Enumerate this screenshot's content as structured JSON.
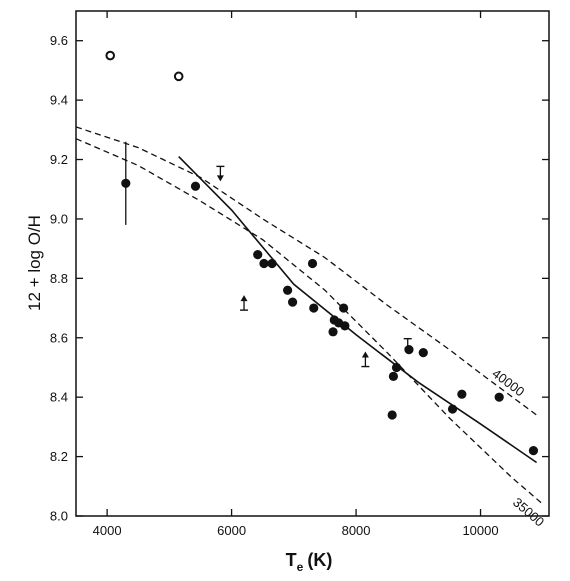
{
  "chart_data": {
    "type": "scatter",
    "title": "",
    "xlabel": "T",
    "xlabel_sub": "e",
    "xlabel_unit": "(K)",
    "ylabel": "12 + log O/H",
    "xlim": [
      3500,
      11100
    ],
    "ylim": [
      8.0,
      9.7
    ],
    "x_ticks": [
      4000,
      6000,
      8000,
      10000
    ],
    "x_tick_labels": [
      "4000",
      "6000",
      "8000",
      "10000"
    ],
    "y_ticks": [
      8.0,
      8.2,
      8.4,
      8.6,
      8.8,
      9.0,
      9.2,
      9.4,
      9.6
    ],
    "y_tick_labels": [
      "8.0",
      "8.2",
      "8.4",
      "8.6",
      "8.8",
      "9.0",
      "9.2",
      "9.4",
      "9.6"
    ],
    "grid": false,
    "series": [
      {
        "marker": "filled-circle",
        "points": [
          [
            4300,
            9.12
          ],
          [
            5420,
            9.11
          ],
          [
            6420,
            8.88
          ],
          [
            6520,
            8.85
          ],
          [
            6650,
            8.85
          ],
          [
            6900,
            8.76
          ],
          [
            6980,
            8.72
          ],
          [
            7300,
            8.85
          ],
          [
            7320,
            8.7
          ],
          [
            7630,
            8.62
          ],
          [
            7650,
            8.66
          ],
          [
            7720,
            8.65
          ],
          [
            7800,
            8.7
          ],
          [
            7820,
            8.64
          ],
          [
            8580,
            8.34
          ],
          [
            8600,
            8.47
          ],
          [
            8650,
            8.5
          ],
          [
            8850,
            8.56
          ],
          [
            9080,
            8.55
          ],
          [
            9550,
            8.36
          ],
          [
            9700,
            8.41
          ],
          [
            10300,
            8.4
          ],
          [
            10850,
            8.22
          ]
        ]
      },
      {
        "marker": "open-circle",
        "points": [
          [
            4050,
            9.55
          ],
          [
            5150,
            9.48
          ]
        ]
      },
      {
        "marker": "error-bar",
        "points": [
          [
            4300,
            9.12,
            9.26,
            8.98
          ]
        ]
      },
      {
        "marker": "upper-limit-arrow",
        "points": [
          [
            5820,
            9.15
          ],
          [
            8830,
            8.57
          ]
        ]
      },
      {
        "marker": "lower-limit-arrow",
        "points": [
          [
            6200,
            8.72
          ],
          [
            8150,
            8.53
          ]
        ]
      },
      {
        "style": "solid",
        "line": [
          [
            5150,
            9.21
          ],
          [
            6000,
            9.03
          ],
          [
            7000,
            8.78
          ],
          [
            8000,
            8.61
          ],
          [
            9000,
            8.45
          ],
          [
            10000,
            8.31
          ],
          [
            10900,
            8.18
          ]
        ]
      },
      {
        "name": "40000",
        "style": "dashed",
        "line": [
          [
            3500,
            9.31
          ],
          [
            4500,
            9.24
          ],
          [
            5500,
            9.14
          ],
          [
            6500,
            9.0
          ],
          [
            7500,
            8.87
          ],
          [
            8500,
            8.71
          ],
          [
            9500,
            8.56
          ],
          [
            10000,
            8.48
          ],
          [
            10900,
            8.34
          ]
        ]
      },
      {
        "name": "35000",
        "style": "dashed",
        "line": [
          [
            3500,
            9.27
          ],
          [
            4500,
            9.18
          ],
          [
            5500,
            9.06
          ],
          [
            6500,
            8.93
          ],
          [
            7500,
            8.76
          ],
          [
            8500,
            8.55
          ],
          [
            9500,
            8.33
          ],
          [
            10500,
            8.13
          ],
          [
            11000,
            8.04
          ]
        ]
      }
    ]
  }
}
